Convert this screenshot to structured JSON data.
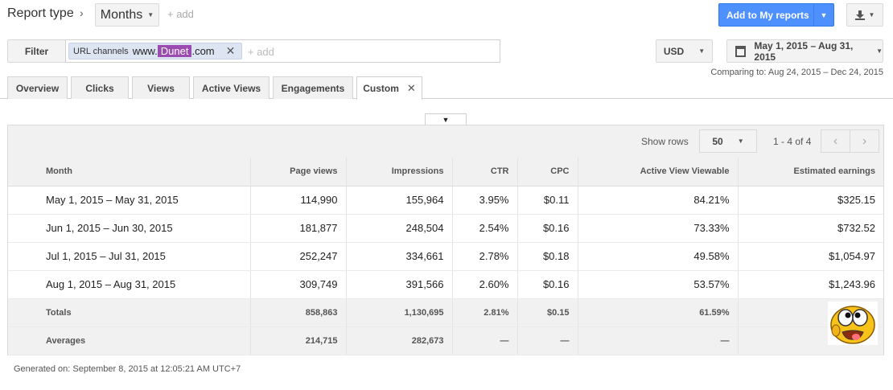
{
  "header": {
    "report_type": "Report type",
    "breadcrumb_chevron": "›",
    "months": "Months",
    "add": "+ add",
    "add_to_reports": "Add to My reports"
  },
  "filter": {
    "label": "Filter",
    "chip_label": "URL channels",
    "chip_prefix": "www.",
    "chip_highlight": "Dunet",
    "chip_suffix": ".com",
    "add": "+ add"
  },
  "currency": "USD",
  "date_range": "May 1, 2015 – Aug 31, 2015",
  "comparing": "Comparing to: Aug 24, 2015 – Dec 24, 2015",
  "tabs": [
    {
      "label": "Overview"
    },
    {
      "label": "Clicks"
    },
    {
      "label": "Views"
    },
    {
      "label": "Active Views"
    },
    {
      "label": "Engagements"
    },
    {
      "label": "Custom"
    }
  ],
  "table_controls": {
    "show_rows_label": "Show rows",
    "rows_value": "50",
    "range": "1 - 4 of 4"
  },
  "columns": [
    "Month",
    "Page views",
    "Impressions",
    "CTR",
    "CPC",
    "Active View Viewable",
    "Estimated earnings"
  ],
  "rows": [
    [
      "May 1, 2015 – May 31, 2015",
      "114,990",
      "155,964",
      "3.95%",
      "$0.11",
      "84.21%",
      "$325.15"
    ],
    [
      "Jun 1, 2015 – Jun 30, 2015",
      "181,877",
      "248,504",
      "2.54%",
      "$0.16",
      "73.33%",
      "$732.52"
    ],
    [
      "Jul 1, 2015 – Jul 31, 2015",
      "252,247",
      "334,661",
      "2.78%",
      "$0.18",
      "49.58%",
      "$1,054.97"
    ],
    [
      "Aug 1, 2015 – Aug 31, 2015",
      "309,749",
      "391,566",
      "2.60%",
      "$0.16",
      "53.57%",
      "$1,243.96"
    ]
  ],
  "totals": [
    "Totals",
    "858,863",
    "1,130,695",
    "2.81%",
    "$0.15",
    "61.59%",
    ""
  ],
  "averages": [
    "Averages",
    "214,715",
    "282,673",
    "—",
    "—",
    "—",
    ""
  ],
  "generated": "Generated on: September 8, 2015 at 12:05:21 AM UTC+7",
  "colors": {
    "primary_button": "#4d90fe",
    "chip_background": "#dde5f3",
    "highlight": "#9c4bb0"
  }
}
